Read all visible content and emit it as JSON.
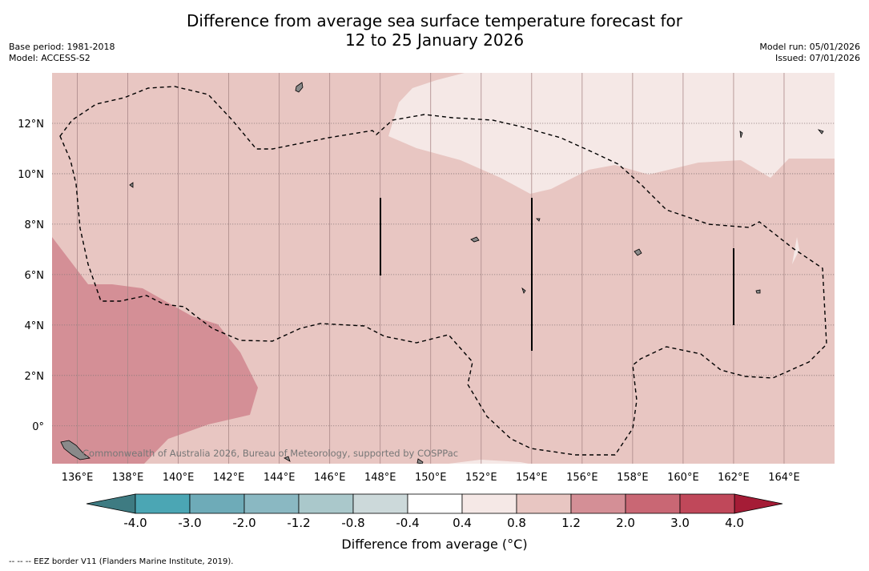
{
  "title_line1": "Difference from average sea surface temperature forecast for",
  "title_line2": "12 to 25 January 2026",
  "meta_left": {
    "base_period": "Base period: 1981-2018",
    "model": "Model: ACCESS-S2"
  },
  "meta_right": {
    "model_run": "Model run: 05/01/2026",
    "issued": "Issued: 07/01/2026"
  },
  "map": {
    "lon_range": [
      135,
      166
    ],
    "lat_range": [
      -1.5,
      14
    ],
    "lon_ticks": [
      136,
      138,
      140,
      142,
      144,
      146,
      148,
      150,
      152,
      154,
      156,
      158,
      160,
      162,
      164
    ],
    "lon_tick_labels": [
      "136°E",
      "138°E",
      "140°E",
      "142°E",
      "144°E",
      "146°E",
      "148°E",
      "150°E",
      "152°E",
      "154°E",
      "156°E",
      "158°E",
      "160°E",
      "162°E",
      "164°E"
    ],
    "lat_ticks": [
      0,
      2,
      4,
      6,
      8,
      10,
      12
    ],
    "lat_tick_labels": [
      "0°",
      "2°N",
      "4°N",
      "6°N",
      "8°N",
      "10°N",
      "12°N"
    ],
    "watermark": "Commonwealth of Australia 2026, Bureau of Meteorology, supported by COSPPac"
  },
  "colorbar": {
    "labels": [
      "-4.0",
      "-3.0",
      "-2.0",
      "-1.2",
      "-0.8",
      "-0.4",
      "0.4",
      "0.8",
      "1.2",
      "2.0",
      "3.0",
      "4.0"
    ],
    "colors": [
      "#4ba6b4",
      "#6eabb8",
      "#8ab8c2",
      "#aac8cb",
      "#ccd9da",
      "#ffffff",
      "#f5e8e6",
      "#e8c6c2",
      "#d48f96",
      "#c96774",
      "#c0485a"
    ],
    "under_color": "#3e7b82",
    "over_color": "#a51c36",
    "title": "Difference from average (°C)"
  },
  "colors": {
    "band_08_12": "#e8c6c2",
    "band_12_20": "#d48f96",
    "band_04_08": "#f5e8e6",
    "land": "#8a8a8a"
  },
  "footnote": "--  --  -- EEZ border V11 (Flanders Marine Institute, 2019)."
}
